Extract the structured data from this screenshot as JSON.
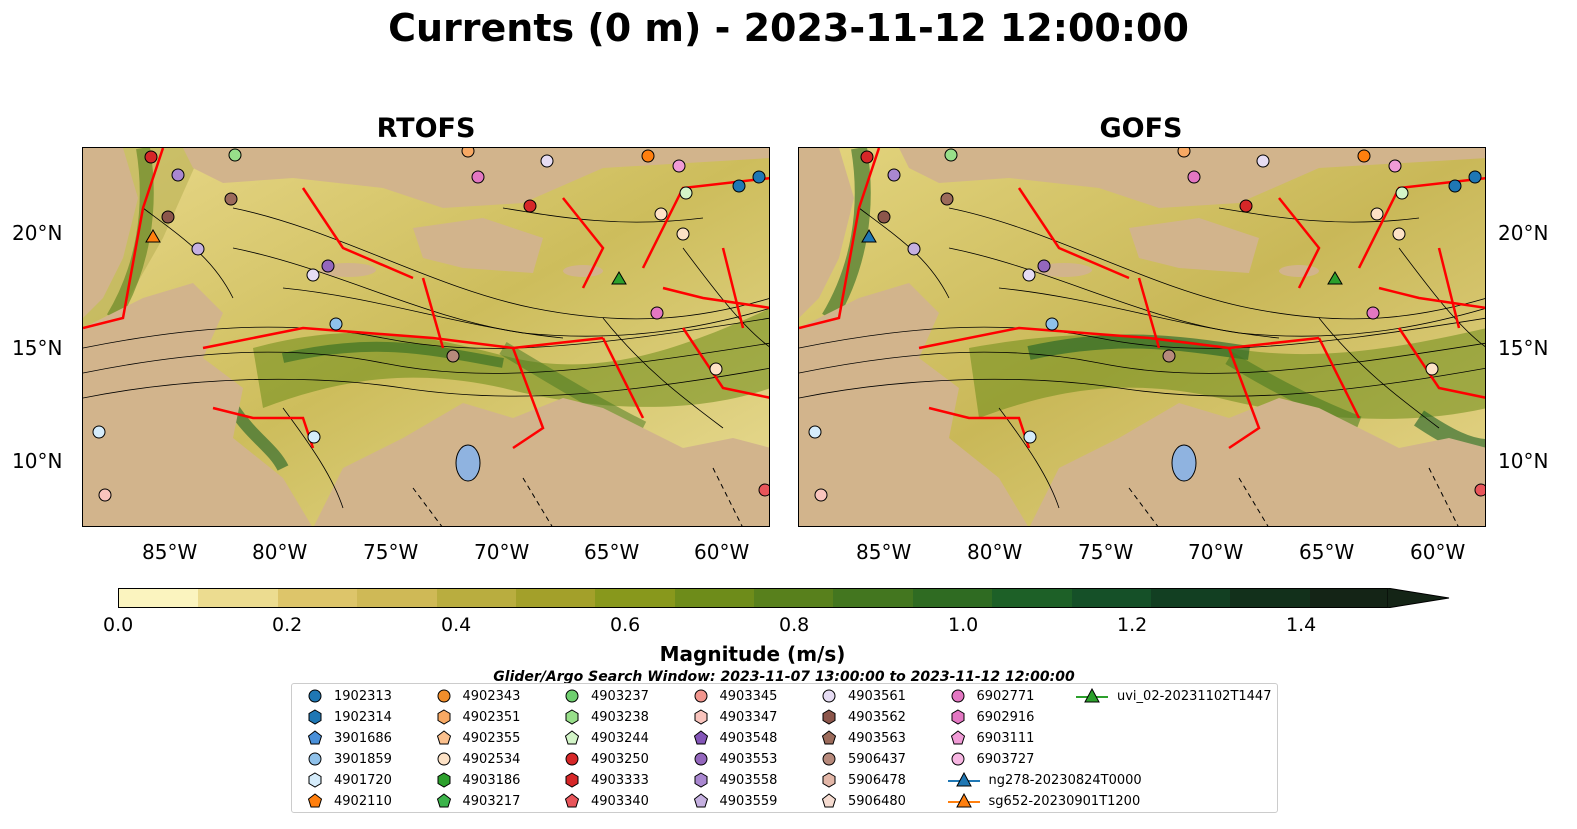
{
  "title": "Currents (0 m) - 2023-11-12 12:00:00",
  "panels": [
    {
      "name": "RTOFS"
    },
    {
      "name": "GOFS"
    }
  ],
  "lat_ticks": [
    "20°N",
    "15°N",
    "10°N"
  ],
  "lon_ticks": [
    "85°W",
    "80°W",
    "75°W",
    "70°W",
    "65°W",
    "60°W"
  ],
  "colorbar": {
    "label": "Magnitude (m/s)",
    "ticks": [
      "0.0",
      "0.2",
      "0.4",
      "0.6",
      "0.8",
      "1.0",
      "1.2",
      "1.4"
    ],
    "colors": [
      "#fbf4bf",
      "#ecdc90",
      "#ddc56a",
      "#cfb956",
      "#b9ad3f",
      "#a3a02a",
      "#88981c",
      "#6e8c1a",
      "#58801c",
      "#43761f",
      "#2f6b22",
      "#1d6027",
      "#155028",
      "#123f22",
      "#12301b",
      "#142416"
    ]
  },
  "search_window": "Glider/Argo Search Window: 2023-11-07 13:00:00 to 2023-11-12 12:00:00",
  "legend": [
    {
      "label": "1902313",
      "color": "#1f77b4",
      "shape": "circle"
    },
    {
      "label": "1902314",
      "color": "#1f77b4",
      "shape": "hex"
    },
    {
      "label": "3901686",
      "color": "#4a90d9",
      "shape": "pent"
    },
    {
      "label": "3901859",
      "color": "#8fc1ea",
      "shape": "circle"
    },
    {
      "label": "4901720",
      "color": "#d5ecfb",
      "shape": "hex"
    },
    {
      "label": "4902110",
      "color": "#ff7f0e",
      "shape": "pent"
    },
    {
      "label": "4902343",
      "color": "#f28e2b",
      "shape": "circle"
    },
    {
      "label": "4902351",
      "color": "#f7a964",
      "shape": "hex"
    },
    {
      "label": "4902355",
      "color": "#fbc08d",
      "shape": "pent"
    },
    {
      "label": "4902534",
      "color": "#fde2c6",
      "shape": "circle"
    },
    {
      "label": "4903186",
      "color": "#2ca02c",
      "shape": "hex"
    },
    {
      "label": "4903217",
      "color": "#3cb44b",
      "shape": "pent"
    },
    {
      "label": "4903237",
      "color": "#6fcf6f",
      "shape": "circle"
    },
    {
      "label": "4903238",
      "color": "#98df8a",
      "shape": "hex"
    },
    {
      "label": "4903244",
      "color": "#d3f5c8",
      "shape": "pent"
    },
    {
      "label": "4903250",
      "color": "#d62728",
      "shape": "circle"
    },
    {
      "label": "4903333",
      "color": "#d62728",
      "shape": "hex"
    },
    {
      "label": "4903340",
      "color": "#e8555a",
      "shape": "pent"
    },
    {
      "label": "4903345",
      "color": "#f2968e",
      "shape": "circle"
    },
    {
      "label": "4903347",
      "color": "#f9c4bd",
      "shape": "hex"
    },
    {
      "label": "4903548",
      "color": "#8456b8",
      "shape": "pent"
    },
    {
      "label": "4903553",
      "color": "#9467bd",
      "shape": "circle"
    },
    {
      "label": "4903558",
      "color": "#a987d0",
      "shape": "hex"
    },
    {
      "label": "4903559",
      "color": "#c5b0e0",
      "shape": "pent"
    },
    {
      "label": "4903561",
      "color": "#e6dcf3",
      "shape": "circle"
    },
    {
      "label": "4903562",
      "color": "#8c564b",
      "shape": "hex"
    },
    {
      "label": "4903563",
      "color": "#9c6b5b",
      "shape": "pent"
    },
    {
      "label": "5906437",
      "color": "#b78a7c",
      "shape": "circle"
    },
    {
      "label": "5906478",
      "color": "#e3b7a8",
      "shape": "hex"
    },
    {
      "label": "5906480",
      "color": "#f5dbd0",
      "shape": "pent"
    },
    {
      "label": "6902771",
      "color": "#e377c2",
      "shape": "circle"
    },
    {
      "label": "6902916",
      "color": "#e377c2",
      "shape": "hex"
    },
    {
      "label": "6903111",
      "color": "#f09bd6",
      "shape": "pent"
    },
    {
      "label": "6903727",
      "color": "#f7b6e2",
      "shape": "circle"
    },
    {
      "label": "ng278-20230824T0000",
      "color": "#1f77b4",
      "shape": "tri"
    },
    {
      "label": "sg652-20230901T1200",
      "color": "#ff7f0e",
      "shape": "tri"
    },
    {
      "label": "uvi_02-20231102T1447",
      "color": "#2ca02c",
      "shape": "tri"
    }
  ],
  "colors": {
    "land": "#d2b48c",
    "border": "#ff0000",
    "water_body": "#8fb3e0"
  }
}
